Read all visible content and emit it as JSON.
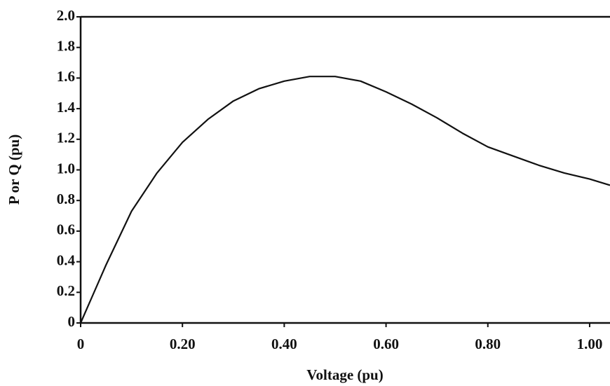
{
  "chart_data": {
    "type": "line",
    "x_label": "Voltage (pu)",
    "y_label": "P or Q (pu)",
    "x": [
      0,
      0.05,
      0.1,
      0.15,
      0.2,
      0.25,
      0.3,
      0.35,
      0.4,
      0.45,
      0.5,
      0.55,
      0.6,
      0.65,
      0.7,
      0.75,
      0.8,
      0.85,
      0.9,
      0.95,
      1.0,
      1.04
    ],
    "series": [
      {
        "color": "#111111",
        "values": [
          0,
          0.38,
          0.73,
          0.98,
          1.18,
          1.33,
          1.45,
          1.53,
          1.58,
          1.61,
          1.61,
          1.58,
          1.51,
          1.43,
          1.34,
          1.24,
          1.15,
          1.09,
          1.03,
          0.98,
          0.94,
          0.9
        ]
      }
    ],
    "xlim": [
      0,
      1.04
    ],
    "ylim": [
      0,
      2.0
    ],
    "xticks": [
      0,
      {
        "value": 0.2,
        "label": "0.20"
      },
      {
        "value": 0.4,
        "label": "0.40"
      },
      {
        "value": 0.6,
        "label": "0.60"
      },
      {
        "value": 0.8,
        "label": "0.80"
      },
      {
        "value": 1.0,
        "label": "1.00"
      }
    ],
    "yticks": [
      0,
      0.2,
      0.4,
      0.6,
      0.8,
      {
        "value": 1.0,
        "label": "1.0"
      },
      1.2,
      1.4,
      1.6,
      1.8,
      {
        "value": 2.0,
        "label": "2.0"
      }
    ]
  }
}
